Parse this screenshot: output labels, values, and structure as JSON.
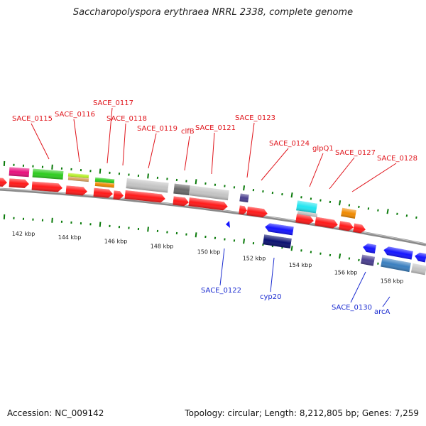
{
  "title": "Saccharopolyspora erythraea NRRL 2338, complete genome",
  "footer": {
    "accession_label": "Accession:",
    "accession": "NC_009142",
    "stats": "Topology: circular; Length: 8,212,805 bp; Genes: 7,259"
  },
  "colors": {
    "label_forward": "#e0141b",
    "label_reverse": "#1a2bd0",
    "backbone": "#8a8a8a",
    "tick": "#0a7a0a"
  },
  "scale": {
    "unit": "kbp",
    "major_ticks_kbp": [
      142,
      144,
      146,
      148,
      150,
      152,
      154,
      156,
      158
    ]
  },
  "gene_labels_forward": [
    "SACE_0115",
    "SACE_0116",
    "SACE_0117",
    "SACE_0118",
    "SACE_0119",
    "clfB",
    "SACE_0121",
    "SACE_0123",
    "SACE_0124",
    "glpQ1",
    "SACE_0127",
    "SACE_0128"
  ],
  "gene_labels_reverse": [
    "SACE_0122",
    "cyp20",
    "SACE_0130",
    "arcA"
  ],
  "feature_colors": [
    "#e8107d",
    "#2ecc1f",
    "#b7f02a",
    "#d9a460",
    "#f08a00",
    "#c4c4c4",
    "#6a6a6a",
    "#4a3f8f",
    "#22e5f0",
    "#ff1a1a",
    "#1414ff",
    "#0a1070",
    "#3a7fbf"
  ]
}
